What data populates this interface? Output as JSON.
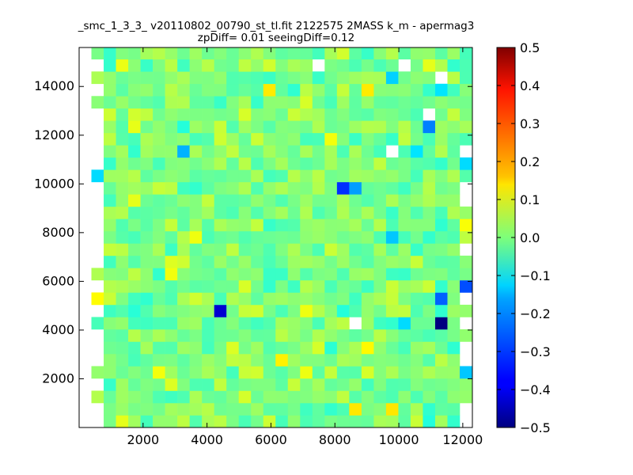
{
  "chart_data": {
    "type": "heatmap",
    "title": "_smc_1_3_3_ v20110802_00790_st_tl.fit 2122575 2MASS k_m - apermag3",
    "subtitle": "zpDiff= 0.01 seeingDiff=0.12",
    "xlabel": "",
    "ylabel": "",
    "xlim": [
      0,
      12300
    ],
    "ylim": [
      0,
      15600
    ],
    "x_ticks": [
      "2000",
      "4000",
      "6000",
      "8000",
      "10000",
      "12000"
    ],
    "y_ticks": [
      "2000",
      "4000",
      "6000",
      "8000",
      "10000",
      "12000",
      "14000"
    ],
    "colorbar": {
      "colormap": "jet",
      "range": [
        -0.5,
        0.5
      ],
      "ticks": [
        "0.5",
        "0.4",
        "0.3",
        "0.2",
        "0.1",
        "0.0",
        "−0.1",
        "−0.2",
        "−0.3",
        "−0.4",
        "−0.5"
      ]
    },
    "grid_x": {
      "start": 0,
      "step": 384,
      "count": 32
    },
    "grid_y": {
      "start": 0,
      "step": 504,
      "count": 31
    },
    "column_extent": {
      "first": 2,
      "last": 31
    },
    "cells_note_missing": [
      [
        1,
        4
      ],
      [
        1,
        6
      ],
      [
        1,
        8
      ],
      [
        1,
        10
      ],
      [
        1,
        12
      ],
      [
        1,
        14
      ],
      [
        0,
        9
      ],
      [
        0,
        3
      ],
      [
        0,
        12
      ],
      [
        29,
        28
      ],
      [
        30,
        29
      ],
      [
        27,
        18
      ],
      [
        24,
        12
      ],
      [
        17,
        3
      ]
    ],
    "notable_cells": [
      {
        "x": 4500,
        "y": 4600,
        "value": -0.42
      },
      {
        "x": 11350,
        "y": 4150,
        "value": -0.5
      },
      {
        "x": 8300,
        "y": 9600,
        "value": -0.33
      },
      {
        "x": 8700,
        "y": 9600,
        "value": -0.22
      },
      {
        "x": 3300,
        "y": 11300,
        "value": -0.2
      },
      {
        "x": 11000,
        "y": 12200,
        "value": -0.25
      },
      {
        "x": 12200,
        "y": 6000,
        "value": -0.3
      },
      {
        "x": 11350,
        "y": 5100,
        "value": -0.28
      },
      {
        "x": 9600,
        "y": 7600,
        "value": -0.18
      },
      {
        "x": 10300,
        "y": 4150,
        "value": -0.16
      },
      {
        "x": 9900,
        "y": 14600,
        "value": -0.17
      },
      {
        "x": 11350,
        "y": 14100,
        "value": -0.15
      },
      {
        "x": 10700,
        "y": 11300,
        "value": -0.15
      },
      {
        "x": 12000,
        "y": 2100,
        "value": -0.18
      },
      {
        "x": 12000,
        "y": 10600,
        "value": -0.16
      },
      {
        "x": 700,
        "y": 10100,
        "value": -0.16
      },
      {
        "x": 12100,
        "y": 8100,
        "value": 0.12
      },
      {
        "x": 9100,
        "y": 3150,
        "value": 0.13
      },
      {
        "x": 1400,
        "y": 300,
        "value": 0.1
      },
      {
        "x": 11000,
        "y": 15100,
        "value": 0.1
      }
    ],
    "white_holes": [
      {
        "x": 8700,
        "y": 4150
      },
      {
        "x": 9900,
        "y": 11300
      },
      {
        "x": 11000,
        "y": 13100
      },
      {
        "x": 11350,
        "y": 14600
      },
      {
        "x": 10300,
        "y": 15100
      },
      {
        "x": 7500,
        "y": 15100
      }
    ],
    "base_value": 0.0,
    "value_spread": 0.06,
    "random_seed": 20110802
  }
}
